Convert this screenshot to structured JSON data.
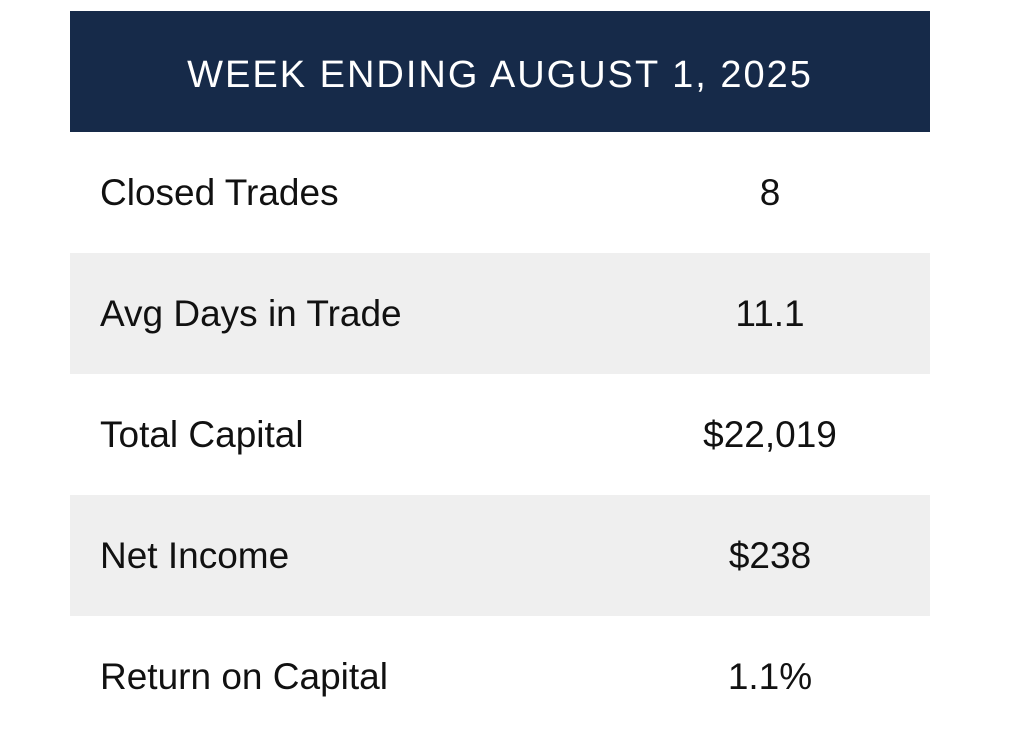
{
  "header": {
    "title": "WEEK ENDING AUGUST 1, 2025",
    "background_color": "#162a49"
  },
  "rows": [
    {
      "label": "Closed Trades",
      "value": "8"
    },
    {
      "label": "Avg Days in Trade",
      "value": "11.1"
    },
    {
      "label": "Total Capital",
      "value": "$22,019"
    },
    {
      "label": "Net Income",
      "value": "$238"
    },
    {
      "label": "Return on Capital",
      "value": "1.1%"
    }
  ],
  "row_shading_color": "#efefef"
}
